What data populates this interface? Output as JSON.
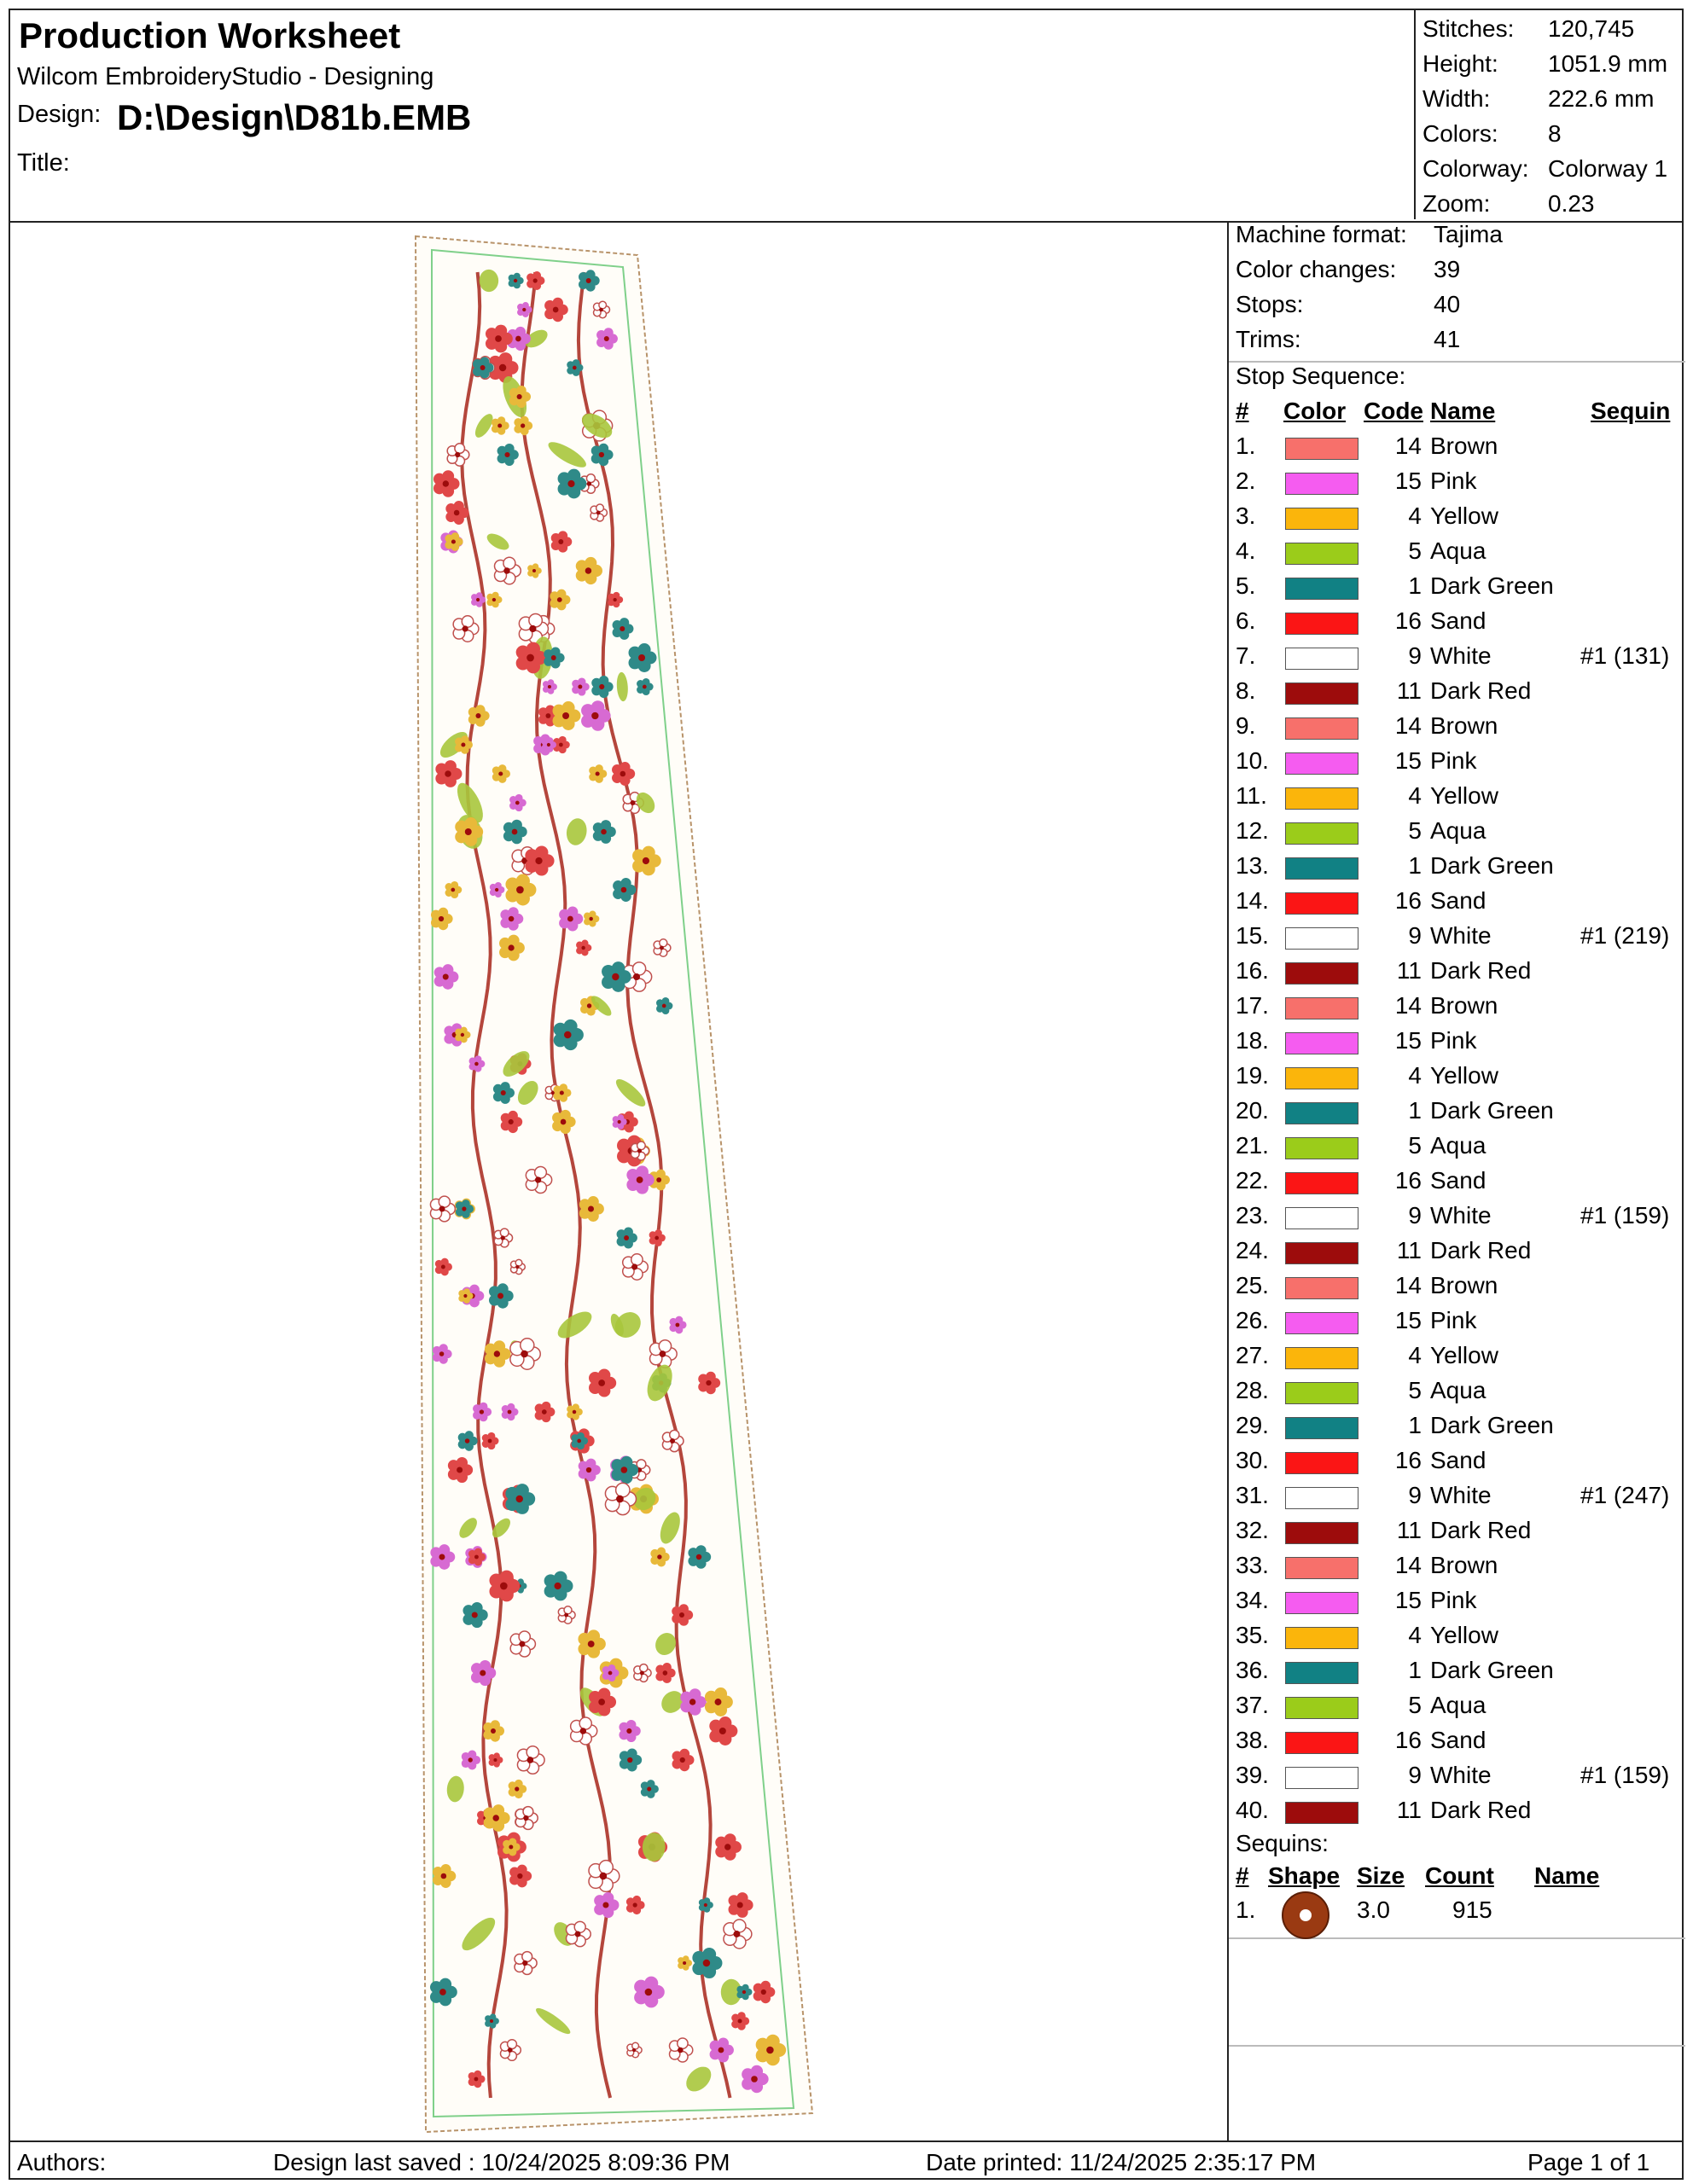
{
  "header": {
    "title": "Production Worksheet",
    "software": "Wilcom EmbroideryStudio - Designing",
    "design_label": "Design:",
    "design_value": "D:\\Design\\D81b.EMB",
    "title_label": "Title:"
  },
  "stats": [
    {
      "label": "Stitches:",
      "value": "120,745"
    },
    {
      "label": "Height:",
      "value": "1051.9 mm"
    },
    {
      "label": "Width:",
      "value": "222.6 mm"
    },
    {
      "label": "Colors:",
      "value": "8"
    },
    {
      "label": "Colorway:",
      "value": "Colorway 1"
    },
    {
      "label": "Zoom:",
      "value": "0.23"
    }
  ],
  "machine": [
    {
      "label": "Machine format:",
      "value": "Tajima"
    },
    {
      "label": "Color changes:",
      "value": "39"
    },
    {
      "label": "Stops:",
      "value": "40"
    },
    {
      "label": "Trims:",
      "value": "41"
    }
  ],
  "stop_sequence": {
    "label": "Stop Sequence:",
    "headers": {
      "num": "#",
      "color": "Color",
      "code": "Code",
      "name": "Name",
      "sequin": "Sequin"
    },
    "rows": [
      {
        "n": "1.",
        "hex": "#f7706b",
        "code": "14",
        "name": "Brown",
        "sequin": ""
      },
      {
        "n": "2.",
        "hex": "#f55cf0",
        "code": "15",
        "name": "Pink",
        "sequin": ""
      },
      {
        "n": "3.",
        "hex": "#fbb50b",
        "code": "4",
        "name": "Yellow",
        "sequin": ""
      },
      {
        "n": "4.",
        "hex": "#9bcc1a",
        "code": "5",
        "name": "Aqua",
        "sequin": ""
      },
      {
        "n": "5.",
        "hex": "#118184",
        "code": "1",
        "name": "Dark Green",
        "sequin": ""
      },
      {
        "n": "6.",
        "hex": "#fb1515",
        "code": "16",
        "name": "Sand",
        "sequin": ""
      },
      {
        "n": "7.",
        "hex": "#ffffff",
        "code": "9",
        "name": "White",
        "sequin": "#1 (131)"
      },
      {
        "n": "8.",
        "hex": "#9d0c0c",
        "code": "11",
        "name": "Dark Red",
        "sequin": ""
      },
      {
        "n": "9.",
        "hex": "#f7706b",
        "code": "14",
        "name": "Brown",
        "sequin": ""
      },
      {
        "n": "10.",
        "hex": "#f55cf0",
        "code": "15",
        "name": "Pink",
        "sequin": ""
      },
      {
        "n": "11.",
        "hex": "#fbb50b",
        "code": "4",
        "name": "Yellow",
        "sequin": ""
      },
      {
        "n": "12.",
        "hex": "#9bcc1a",
        "code": "5",
        "name": "Aqua",
        "sequin": ""
      },
      {
        "n": "13.",
        "hex": "#118184",
        "code": "1",
        "name": "Dark Green",
        "sequin": ""
      },
      {
        "n": "14.",
        "hex": "#fb1515",
        "code": "16",
        "name": "Sand",
        "sequin": ""
      },
      {
        "n": "15.",
        "hex": "#ffffff",
        "code": "9",
        "name": "White",
        "sequin": "#1 (219)"
      },
      {
        "n": "16.",
        "hex": "#9d0c0c",
        "code": "11",
        "name": "Dark Red",
        "sequin": ""
      },
      {
        "n": "17.",
        "hex": "#f7706b",
        "code": "14",
        "name": "Brown",
        "sequin": ""
      },
      {
        "n": "18.",
        "hex": "#f55cf0",
        "code": "15",
        "name": "Pink",
        "sequin": ""
      },
      {
        "n": "19.",
        "hex": "#fbb50b",
        "code": "4",
        "name": "Yellow",
        "sequin": ""
      },
      {
        "n": "20.",
        "hex": "#118184",
        "code": "1",
        "name": "Dark Green",
        "sequin": ""
      },
      {
        "n": "21.",
        "hex": "#9bcc1a",
        "code": "5",
        "name": "Aqua",
        "sequin": ""
      },
      {
        "n": "22.",
        "hex": "#fb1515",
        "code": "16",
        "name": "Sand",
        "sequin": ""
      },
      {
        "n": "23.",
        "hex": "#ffffff",
        "code": "9",
        "name": "White",
        "sequin": "#1 (159)"
      },
      {
        "n": "24.",
        "hex": "#9d0c0c",
        "code": "11",
        "name": "Dark Red",
        "sequin": ""
      },
      {
        "n": "25.",
        "hex": "#f7706b",
        "code": "14",
        "name": "Brown",
        "sequin": ""
      },
      {
        "n": "26.",
        "hex": "#f55cf0",
        "code": "15",
        "name": "Pink",
        "sequin": ""
      },
      {
        "n": "27.",
        "hex": "#fbb50b",
        "code": "4",
        "name": "Yellow",
        "sequin": ""
      },
      {
        "n": "28.",
        "hex": "#9bcc1a",
        "code": "5",
        "name": "Aqua",
        "sequin": ""
      },
      {
        "n": "29.",
        "hex": "#118184",
        "code": "1",
        "name": "Dark Green",
        "sequin": ""
      },
      {
        "n": "30.",
        "hex": "#fb1515",
        "code": "16",
        "name": "Sand",
        "sequin": ""
      },
      {
        "n": "31.",
        "hex": "#ffffff",
        "code": "9",
        "name": "White",
        "sequin": "#1 (247)"
      },
      {
        "n": "32.",
        "hex": "#9d0c0c",
        "code": "11",
        "name": "Dark Red",
        "sequin": ""
      },
      {
        "n": "33.",
        "hex": "#f7706b",
        "code": "14",
        "name": "Brown",
        "sequin": ""
      },
      {
        "n": "34.",
        "hex": "#f55cf0",
        "code": "15",
        "name": "Pink",
        "sequin": ""
      },
      {
        "n": "35.",
        "hex": "#fbb50b",
        "code": "4",
        "name": "Yellow",
        "sequin": ""
      },
      {
        "n": "36.",
        "hex": "#118184",
        "code": "1",
        "name": "Dark Green",
        "sequin": ""
      },
      {
        "n": "37.",
        "hex": "#9bcc1a",
        "code": "5",
        "name": "Aqua",
        "sequin": ""
      },
      {
        "n": "38.",
        "hex": "#fb1515",
        "code": "16",
        "name": "Sand",
        "sequin": ""
      },
      {
        "n": "39.",
        "hex": "#ffffff",
        "code": "9",
        "name": "White",
        "sequin": "#1 (159)"
      },
      {
        "n": "40.",
        "hex": "#9d0c0c",
        "code": "11",
        "name": "Dark Red",
        "sequin": ""
      }
    ]
  },
  "sequins": {
    "label": "Sequins:",
    "headers": {
      "num": "#",
      "shape": "Shape",
      "size": "Size",
      "count": "Count",
      "name": "Name"
    },
    "rows": [
      {
        "n": "1.",
        "shape": "round-sequin",
        "size": "3.0",
        "count": "915",
        "name": ""
      }
    ]
  },
  "footer": {
    "authors": "Authors:",
    "saved": "Design last saved : 10/24/2025 8:09:36 PM",
    "printed": "Date printed: 11/24/2025 2:35:17 PM",
    "page": "Page 1 of 1"
  },
  "preview": {
    "motif_colors": [
      "#b4463c",
      "#e04848",
      "#d76ad2",
      "#e8b93a",
      "#2f8a88",
      "#a9c63c",
      "#f2b7b7"
    ]
  }
}
